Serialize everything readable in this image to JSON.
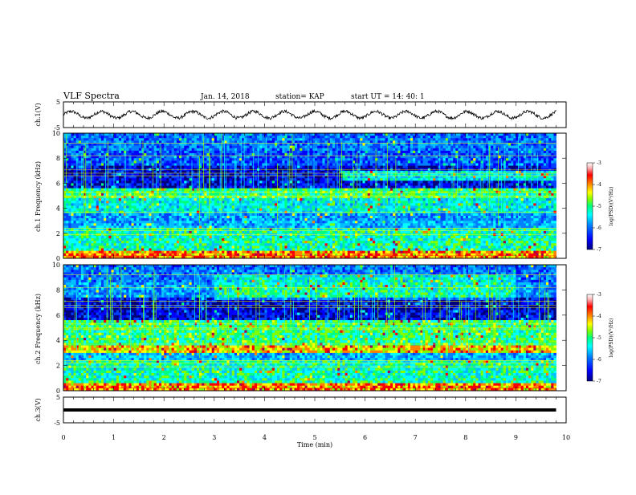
{
  "header": {
    "title": "VLF Spectra",
    "date": "Jan. 14, 2018",
    "station": "station= KAP",
    "start": "start  UT =   14: 40: 1"
  },
  "chart_data": [
    {
      "type": "line",
      "name": "ch1-waveform",
      "ylabel": "ch.1(V)",
      "ylim": [
        -5,
        5
      ],
      "yticks": [
        "5",
        "-5"
      ],
      "xlim": [
        0,
        10
      ],
      "note_values": "oscillating waveform ~ +-1.5 V around 0, approx 16 cycles over ~9.8 min"
    },
    {
      "type": "heatmap",
      "name": "ch1-spectrogram",
      "ylabel": "ch.1 Frequency (kHz)",
      "ylim": [
        0,
        10
      ],
      "yticks": [
        "0",
        "2",
        "4",
        "6",
        "8",
        "10"
      ],
      "xlim": [
        0,
        10
      ],
      "data_extent_min": 9.8,
      "colorbar": {
        "label": "log(PSD)(V²/Hz)",
        "range": [
          -7,
          -3
        ],
        "ticks": [
          "-3",
          "-4",
          "-5",
          "-6",
          "-7"
        ]
      }
    },
    {
      "type": "heatmap",
      "name": "ch2-spectrogram",
      "ylabel": "ch.2 Frequency (kHz)",
      "ylim": [
        0,
        10
      ],
      "yticks": [
        "0",
        "2",
        "4",
        "6",
        "8",
        "10"
      ],
      "xlim": [
        0,
        10
      ],
      "data_extent_min": 9.8,
      "colorbar": {
        "label": "log(PSD)(V²/Hz)",
        "range": [
          -7,
          -3
        ],
        "ticks": [
          "-3",
          "-4",
          "-5",
          "-6",
          "-7"
        ]
      }
    },
    {
      "type": "line",
      "name": "ch3-waveform",
      "ylabel": "ch.3(V)",
      "ylim": [
        -5,
        5
      ],
      "yticks": [
        "5",
        "-5"
      ],
      "xlim": [
        0,
        10
      ],
      "constant_value": 0,
      "xlabel": "Time  (min)",
      "xticks": [
        "0",
        "1",
        "2",
        "3",
        "4",
        "5",
        "6",
        "7",
        "8",
        "9",
        "10"
      ]
    }
  ],
  "colors": {
    "scale": [
      "#00007f",
      "#0000ff",
      "#0080ff",
      "#00ffff",
      "#00ff80",
      "#80ff00",
      "#ffff00",
      "#ff8000",
      "#ff0000",
      "#ffffff"
    ],
    "axis": "#000000"
  }
}
